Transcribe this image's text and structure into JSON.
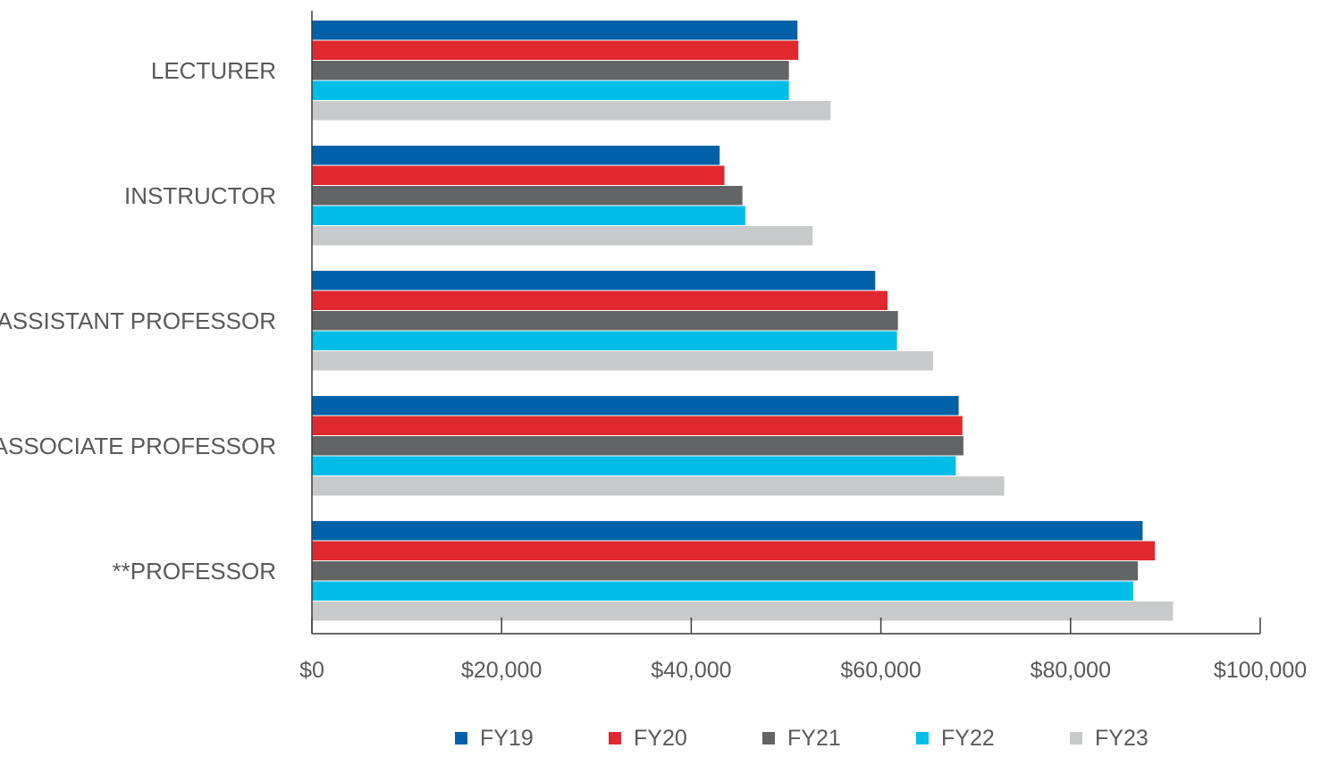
{
  "chart_data": {
    "type": "bar",
    "orientation": "horizontal",
    "categories": [
      "LECTURER",
      "INSTRUCTOR",
      "ASSISTANT PROFESSOR",
      "ASSOCIATE PROFESSOR",
      "**PROFESSOR"
    ],
    "series": [
      {
        "name": "FY19",
        "color": "#0061a8",
        "values": [
          51200,
          43000,
          59400,
          68200,
          87600
        ]
      },
      {
        "name": "FY20",
        "color": "#e0292f",
        "values": [
          51300,
          43500,
          60700,
          68600,
          88900
        ]
      },
      {
        "name": "FY21",
        "color": "#636466",
        "values": [
          50300,
          45400,
          61800,
          68700,
          87100
        ]
      },
      {
        "name": "FY22",
        "color": "#00bde8",
        "values": [
          50300,
          45700,
          61700,
          67900,
          86600
        ]
      },
      {
        "name": "FY23",
        "color": "#c8c9ca",
        "values": [
          54700,
          52800,
          65500,
          73000,
          90800
        ]
      }
    ],
    "xlim": [
      0,
      100000
    ],
    "xticks": [
      0,
      20000,
      40000,
      60000,
      80000,
      100000
    ],
    "xtick_labels": [
      "$0",
      "$20,000",
      "$40,000",
      "$60,000",
      "$80,000",
      "$100,000"
    ],
    "grid": false,
    "legend_position": "bottom"
  }
}
